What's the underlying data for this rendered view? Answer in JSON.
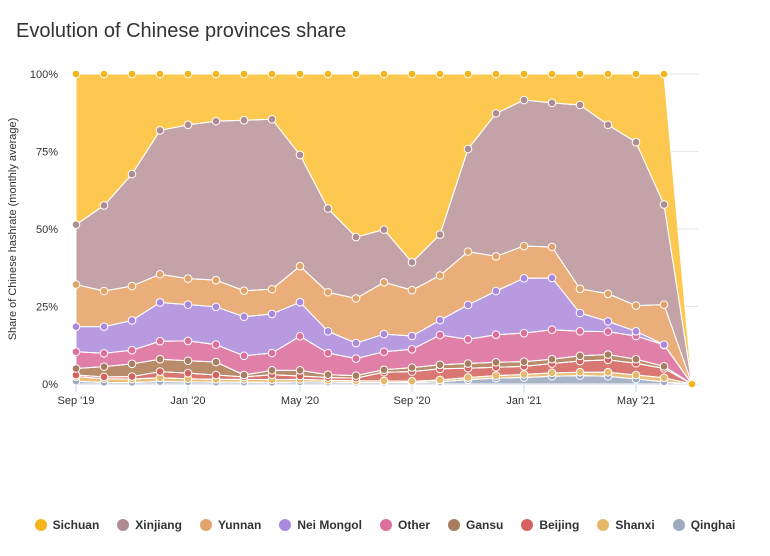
{
  "title": "Evolution of Chinese provinces share",
  "chart_data": {
    "type": "area",
    "stacking": "percent",
    "title": "Evolution of Chinese provinces share",
    "ylabel": "Share of Chinese hashrate (monthly average)",
    "xlabel": "",
    "ylim": [
      0,
      100
    ],
    "yticks": [
      "0%",
      "25%",
      "50%",
      "75%",
      "100%"
    ],
    "xticks": [
      {
        "label": "Sep '19",
        "index": 0
      },
      {
        "label": "Jan '20",
        "index": 4
      },
      {
        "label": "May '20",
        "index": 8
      },
      {
        "label": "Sep '20",
        "index": 12
      },
      {
        "label": "Jan '21",
        "index": 16
      },
      {
        "label": "May '21",
        "index": 20
      }
    ],
    "x": [
      "2019-09",
      "2019-10",
      "2019-11",
      "2019-12",
      "2020-01",
      "2020-02",
      "2020-03",
      "2020-04",
      "2020-05",
      "2020-06",
      "2020-07",
      "2020-08",
      "2020-09",
      "2020-10",
      "2020-11",
      "2020-12",
      "2021-01",
      "2021-02",
      "2021-03",
      "2021-04",
      "2021-05",
      "2021-06",
      "2021-07"
    ],
    "grid": true,
    "legend_position": "bottom",
    "series": [
      {
        "name": "Qinghai",
        "color": "#a9b4c6",
        "values": [
          0.9,
          0.5,
          0.5,
          0.8,
          0.7,
          0.6,
          0.6,
          0.5,
          0.7,
          0.6,
          0.5,
          0.5,
          0.5,
          0.7,
          1.4,
          1.9,
          2.1,
          2.5,
          2.7,
          2.5,
          1.6,
          0.7,
          0
        ]
      },
      {
        "name": "Shanxi",
        "color": "#e8c07c",
        "values": [
          1.5,
          1.2,
          1.1,
          1.2,
          1.0,
          0.9,
          0.9,
          0.9,
          0.8,
          0.6,
          0.5,
          0.5,
          0.4,
          0.6,
          0.7,
          0.8,
          1.0,
          1.1,
          1.1,
          1.3,
          1.3,
          1.3,
          0
        ]
      },
      {
        "name": "Beijing",
        "color": "#d97773",
        "values": [
          0.5,
          0.6,
          0.8,
          2.0,
          1.8,
          1.4,
          0.8,
          1.6,
          1.1,
          0.9,
          0.9,
          2.8,
          3.1,
          3.6,
          3.0,
          2.7,
          2.6,
          3.0,
          3.6,
          4.0,
          3.8,
          3.0,
          0
        ]
      },
      {
        "name": "Gansu",
        "color": "#b88b6b",
        "values": [
          2.1,
          3.3,
          4.1,
          4.0,
          4.0,
          4.2,
          0.6,
          1.4,
          1.8,
          0.9,
          0.8,
          0.8,
          1.3,
          1.3,
          1.5,
          1.6,
          1.5,
          1.4,
          1.7,
          1.7,
          1.3,
          0.7,
          0
        ]
      },
      {
        "name": "Other",
        "color": "#e07fa8",
        "values": [
          5.4,
          4.3,
          4.4,
          5.8,
          6.4,
          5.6,
          6.2,
          5.6,
          11.0,
          7.0,
          5.5,
          5.8,
          5.9,
          9.6,
          7.8,
          8.9,
          9.2,
          9.5,
          7.9,
          7.4,
          7.5,
          6.9,
          0
        ]
      },
      {
        "name": "Nei Mongol",
        "color": "#b89ae0",
        "values": [
          8.1,
          8.6,
          9.6,
          12.5,
          11.7,
          12.2,
          12.6,
          12.6,
          11.0,
          7.0,
          5.0,
          5.7,
          4.3,
          4.8,
          11.1,
          14.1,
          17.7,
          16.7,
          5.9,
          3.3,
          1.5,
          0.1,
          0
        ]
      },
      {
        "name": "Yunnan",
        "color": "#e9ae79",
        "values": [
          13.6,
          11.5,
          11.1,
          9.1,
          8.4,
          8.6,
          8.4,
          8.0,
          11.6,
          12.6,
          14.4,
          16.7,
          14.8,
          14.4,
          17.2,
          11.2,
          10.4,
          10.0,
          7.8,
          8.9,
          8.3,
          12.9,
          0
        ]
      },
      {
        "name": "Xinjiang",
        "color": "#c3a2a8",
        "values": [
          19.3,
          27.6,
          36.1,
          46.4,
          49.6,
          51.3,
          55.0,
          54.8,
          35.9,
          27.0,
          19.8,
          17.0,
          9.0,
          13.2,
          33.1,
          46.1,
          47.1,
          46.5,
          59.3,
          54.5,
          52.7,
          32.3,
          0
        ]
      },
      {
        "name": "Sichuan",
        "color": "#fdc850",
        "values": [
          48.6,
          42.4,
          32.3,
          18.2,
          16.4,
          15.2,
          14.9,
          14.6,
          26.1,
          43.4,
          52.6,
          50.2,
          60.8,
          51.8,
          24.2,
          12.7,
          8.4,
          9.3,
          10.0,
          16.4,
          22.0,
          42.1,
          0
        ]
      }
    ]
  },
  "legend": [
    {
      "name": "Sichuan",
      "color": "#f7b51c"
    },
    {
      "name": "Xinjiang",
      "color": "#b08b92"
    },
    {
      "name": "Yunnan",
      "color": "#e2a46a"
    },
    {
      "name": "Nei Mongol",
      "color": "#a989dd"
    },
    {
      "name": "Other",
      "color": "#dd6f9c"
    },
    {
      "name": "Gansu",
      "color": "#a87d5f"
    },
    {
      "name": "Beijing",
      "color": "#d4625f"
    },
    {
      "name": "Shanxi",
      "color": "#e5b86a"
    },
    {
      "name": "Qinghai",
      "color": "#9eaabf"
    }
  ]
}
